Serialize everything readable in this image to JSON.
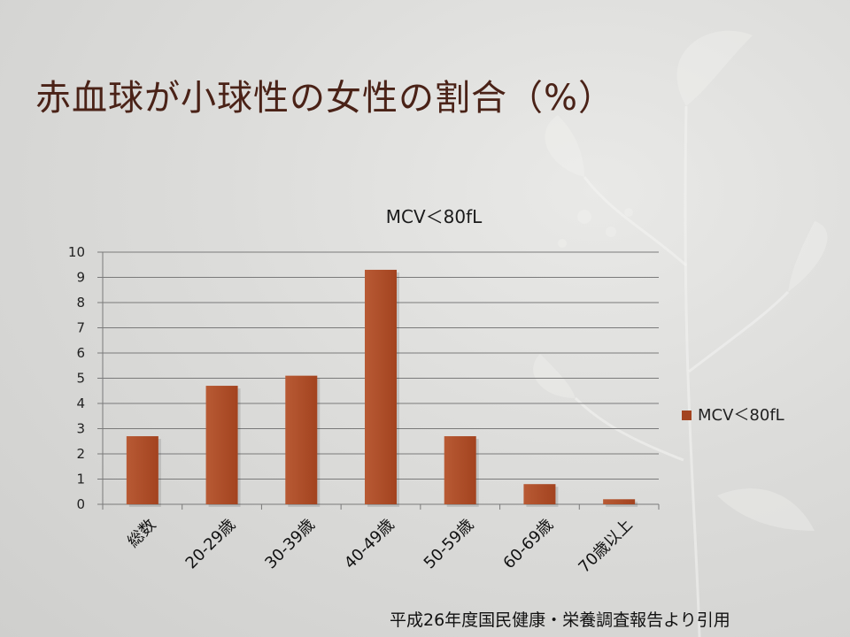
{
  "slide": {
    "title": "赤血球が小球性の女性の割合（%）",
    "source": "平成26年度国民健康・栄養調査報告より引用"
  },
  "colors": {
    "bar": "#a3431f",
    "bar_light": "#b85a34",
    "title": "#4a2217",
    "grid": "#7a7a7a"
  },
  "chart_data": {
    "type": "bar",
    "title": "MCV＜80fL",
    "categories": [
      "総数",
      "20-29歳",
      "30-39歳",
      "40-49歳",
      "50-59歳",
      "60-69歳",
      "70歳以上"
    ],
    "series": [
      {
        "name": "MCV＜80fL",
        "values": [
          2.7,
          4.7,
          5.1,
          9.3,
          2.7,
          0.8,
          0.2
        ]
      }
    ],
    "ylim": [
      0,
      10
    ],
    "yticks": [
      0,
      1,
      2,
      3,
      4,
      5,
      6,
      7,
      8,
      9,
      10
    ],
    "grid": true,
    "legend": "right"
  }
}
